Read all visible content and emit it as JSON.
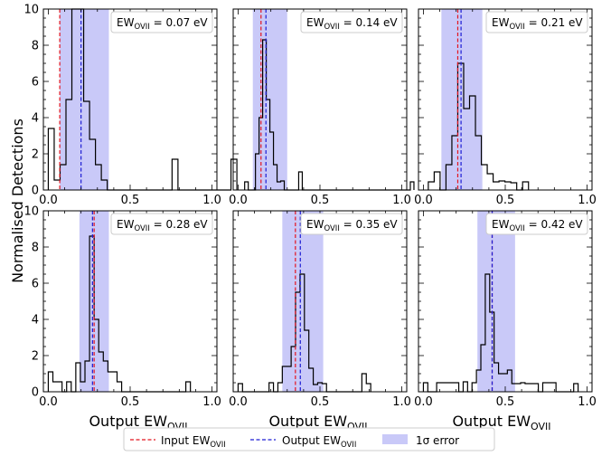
{
  "ylabel": "Normalised Detections",
  "xlabel_main": "Output EW",
  "xlabel_sub": "OVII",
  "x_ticks": [
    "0.0",
    "0.5",
    "1.0"
  ],
  "y_ticks": [
    "0",
    "2",
    "4",
    "6",
    "8",
    "10"
  ],
  "colors": {
    "input": "#e4141e",
    "output": "#1c1cd4",
    "band": "#c9c9f8",
    "hist": "#000000"
  },
  "legend": {
    "placement": "bottom-center",
    "items": [
      {
        "label_main": "Input EW",
        "label_sub": "OVII",
        "style": "red-dashed-line"
      },
      {
        "label_main": "Output EW",
        "label_sub": "OVII",
        "style": "blue-dashed-line"
      },
      {
        "label_main": "1σ error",
        "label_sub": "",
        "style": "blue-band"
      }
    ]
  },
  "chart_data": [
    {
      "type": "bar",
      "annotation_main": "EW",
      "annotation_sub": "OVII",
      "annotation_value": " = 0.07 eV",
      "xlim": [
        -0.03,
        1.03
      ],
      "ylim": [
        0,
        10
      ],
      "input": 0.07,
      "output": 0.2,
      "band": [
        0.07,
        0.37
      ],
      "bin_start": 0.0,
      "bin_width": 0.036,
      "values": [
        3.4,
        0.55,
        1.4,
        5.0,
        10.0,
        10.0,
        4.9,
        2.8,
        1.4,
        0.55,
        0,
        0,
        0,
        0,
        0,
        0,
        0,
        0,
        0,
        0,
        0,
        1.7,
        0,
        0,
        0,
        0,
        0,
        0,
        0,
        0,
        0,
        1.7
      ]
    },
    {
      "type": "bar",
      "annotation_main": "EW",
      "annotation_sub": "OVII",
      "annotation_value": " = 0.14 eV",
      "xlim": [
        -0.03,
        1.03
      ],
      "ylim": [
        0,
        10
      ],
      "input": 0.14,
      "output": 0.17,
      "band": [
        0.09,
        0.3
      ],
      "bin_start": 0.04,
      "bin_width": 0.022,
      "values": [
        0.45,
        0,
        0,
        2.0,
        4.0,
        8.3,
        5.0,
        3.2,
        1.4,
        0.45,
        0.5,
        0,
        0,
        0,
        0,
        1.0,
        0,
        0,
        0,
        0,
        0,
        0,
        0,
        0,
        0,
        0,
        0,
        0,
        0,
        0,
        0,
        0,
        0,
        0,
        0,
        0,
        0,
        0,
        0,
        0,
        0,
        0,
        0,
        0,
        0,
        0,
        0.45
      ]
    },
    {
      "type": "bar",
      "annotation_main": "EW",
      "annotation_sub": "OVII",
      "annotation_value": " = 0.21 eV",
      "xlim": [
        -0.03,
        1.03
      ],
      "ylim": [
        0,
        10
      ],
      "input": 0.21,
      "output": 0.23,
      "band": [
        0.11,
        0.36
      ],
      "bin_start": 0.03,
      "bin_width": 0.036,
      "values": [
        0.45,
        1.0,
        0,
        1.4,
        3.0,
        7.0,
        4.5,
        5.2,
        3.0,
        1.4,
        0.9,
        0.45,
        0.5,
        0.45,
        0.4,
        0,
        0.45
      ]
    },
    {
      "type": "bar",
      "annotation_main": "EW",
      "annotation_sub": "OVII",
      "annotation_value": " = 0.28 eV",
      "xlim": [
        -0.03,
        1.03
      ],
      "ylim": [
        0,
        10
      ],
      "input": 0.28,
      "output": 0.27,
      "band": [
        0.19,
        0.37
      ],
      "bin_start": 0.0,
      "bin_width": 0.028,
      "values": [
        1.1,
        0.55,
        0.55,
        0,
        0.55,
        0,
        1.6,
        0.55,
        1.7,
        8.6,
        4.0,
        2.2,
        1.7,
        1.1,
        1.1,
        0.55,
        0,
        0,
        0,
        0,
        0,
        0,
        0,
        0,
        0,
        0,
        0,
        0,
        0,
        0,
        0.55
      ]
    },
    {
      "type": "bar",
      "annotation_main": "EW",
      "annotation_sub": "OVII",
      "annotation_value": " = 0.35 eV",
      "xlim": [
        -0.03,
        1.03
      ],
      "ylim": [
        0,
        10
      ],
      "input": 0.35,
      "output": 0.38,
      "band": [
        0.27,
        0.52
      ],
      "bin_start": 0.0,
      "bin_width": 0.027,
      "values": [
        0.45,
        0,
        0,
        0,
        0,
        0,
        0,
        0.5,
        0,
        0.5,
        1.4,
        1.4,
        2.5,
        5.5,
        6.5,
        3.4,
        1.3,
        0.4,
        0.5,
        0.45,
        0,
        0,
        0,
        0,
        0,
        0,
        0,
        0,
        1.0,
        0.45
      ]
    },
    {
      "type": "bar",
      "annotation_main": "EW",
      "annotation_sub": "OVII",
      "annotation_value": " = 0.42 eV",
      "xlim": [
        -0.03,
        1.03
      ],
      "ylim": [
        0,
        10
      ],
      "input": 0.42,
      "output": 0.42,
      "band": [
        0.33,
        0.56
      ],
      "bin_start": 0.0,
      "bin_width": 0.027,
      "values": [
        0.5,
        0,
        0,
        0.5,
        0.5,
        0.5,
        0.5,
        0.5,
        0,
        0.55,
        0,
        0.5,
        1.2,
        2.6,
        6.5,
        4.4,
        1.6,
        1.0,
        1.0,
        1.2,
        0.45,
        0.45,
        0.5,
        0.45,
        0.45,
        0.45,
        0,
        0.5,
        0.5,
        0.5,
        0,
        0,
        0,
        0,
        0.45
      ]
    }
  ]
}
